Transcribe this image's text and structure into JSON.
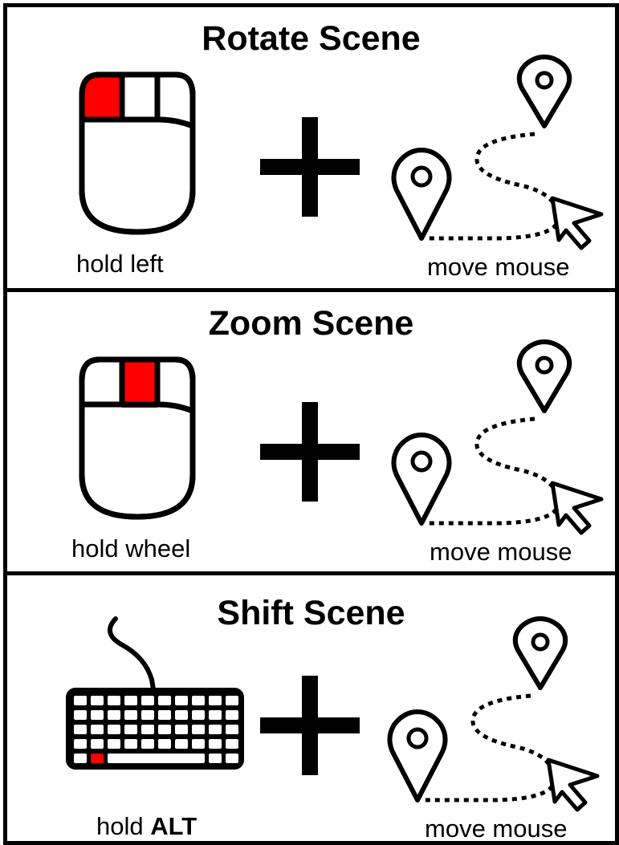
{
  "panels": [
    {
      "title": "Rotate Scene",
      "device": "mouse",
      "highlight": "left-button",
      "action_label": "hold left",
      "motion_label": "move mouse"
    },
    {
      "title": "Zoom Scene",
      "device": "mouse",
      "highlight": "wheel",
      "action_label": "hold wheel",
      "motion_label": "move mouse"
    },
    {
      "title": "Shift Scene",
      "device": "keyboard",
      "highlight": "alt-key",
      "action_prefix": "hold ",
      "action_key": "ALT",
      "motion_label": "move mouse"
    }
  ],
  "icons": [
    "mouse-icon",
    "keyboard-icon",
    "plus-icon",
    "location-pin-icon",
    "cursor-arrow-icon",
    "dotted-path"
  ],
  "colors": {
    "highlight": "#ff0000",
    "stroke": "#000000",
    "background": "#ffffff"
  }
}
